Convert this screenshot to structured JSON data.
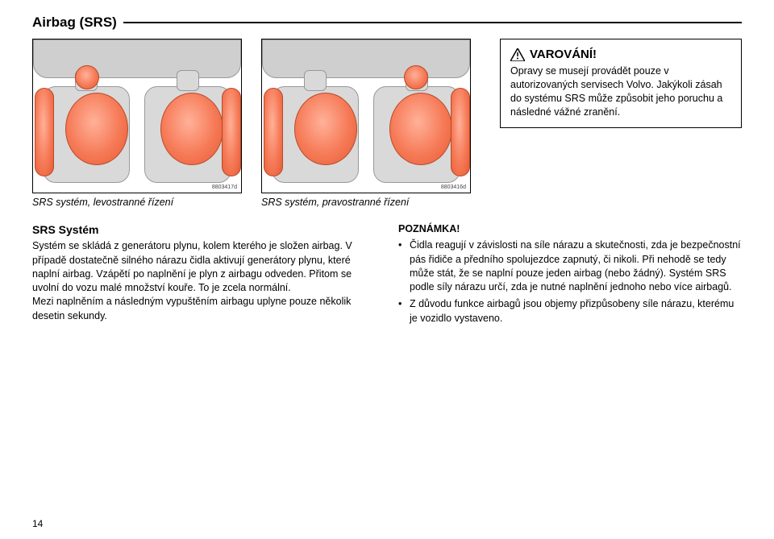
{
  "page": {
    "header_title": "Airbag (SRS)",
    "page_number": "14"
  },
  "warning": {
    "title": "VAROVÁNÍ!",
    "body": "Opravy se musejí provádět pouze v autorizovaných servisech Volvo. Jakýkoli zásah do systému SRS může způsobit jeho poruchu a následné vážné zranění."
  },
  "illustrations": {
    "left_id": "8803417d",
    "right_id": "8803416d",
    "left_caption": "SRS systém, levostranné řízení",
    "right_caption": "SRS systém, pravostranné řízení"
  },
  "srs_section": {
    "title": "SRS Systém",
    "body": "Systém se skládá z generátoru plynu, kolem kterého je složen airbag. V případě dostatečně silného nárazu čidla aktivují generátory plynu, které naplní airbag. Vzápětí po naplnění je plyn z airbagu odveden. Přitom se uvolní do vozu malé množství kouře. To je zcela normální.\nMezi naplněním a následným vypuštěním airbagu uplyne pouze několik desetin sekundy."
  },
  "note": {
    "title": "POZNÁMKA!",
    "bullets": [
      "Čidla reagují v závislosti na síle nárazu a skutečnosti, zda je bezpečnostní pás řidiče a předního spolujezdce zapnutý, či nikoli. Při nehodě se tedy může stát, že se naplní pouze jeden airbag (nebo žádný). Systém SRS podle síly nárazu určí, zda je nutné naplnění jednoho nebo více airbagů.",
      "Z důvodu funkce airbagů jsou objemy přizpůsobeny síle nárazu, kterému je vozidlo vystaveno."
    ]
  },
  "colors": {
    "airbag_fill": "#f67a57",
    "airbag_edge": "#b84a28",
    "seat_fill": "#d9d9d9",
    "border": "#000000"
  }
}
